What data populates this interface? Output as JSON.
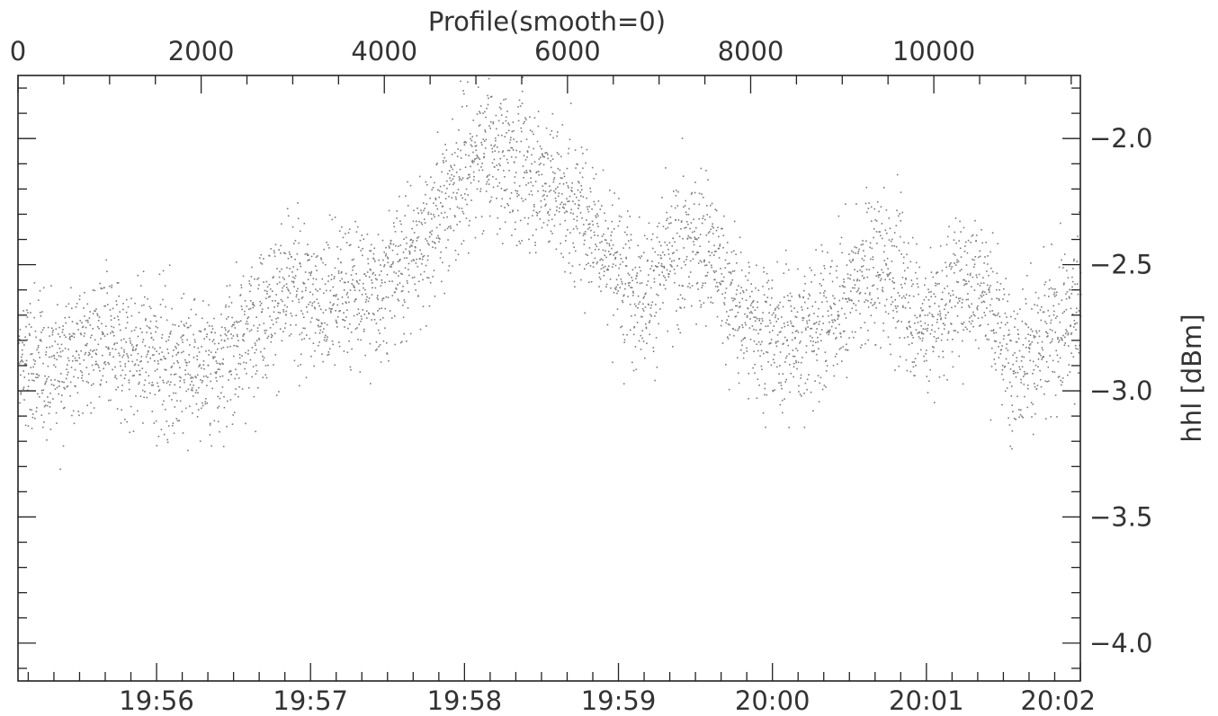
{
  "chart_data": {
    "type": "scatter",
    "title": "Profile(smooth=0)",
    "ylabel": "hhl [dBm]",
    "x_top": {
      "label": "Profile(smooth=0)",
      "range": [
        0,
        11600
      ],
      "major_ticks": [
        0,
        2000,
        4000,
        6000,
        8000,
        10000
      ],
      "tick_labels": [
        "0",
        "2000",
        "4000",
        "6000",
        "8000",
        "10000"
      ],
      "minor_step": 500
    },
    "x_bottom": {
      "range_time": [
        "19:55:06",
        "20:02:00"
      ],
      "major_ticks": [
        "19:56",
        "19:57",
        "19:58",
        "19:59",
        "20:00",
        "20:01",
        "20:02"
      ],
      "tick_labels": [
        "19:56",
        "19:57",
        "19:58",
        "19:59",
        "20:00",
        "20:01",
        "20:02"
      ],
      "minor_step_seconds": 10
    },
    "y": {
      "range": [
        -4.15,
        -1.75
      ],
      "major_ticks": [
        -2.0,
        -2.5,
        -3.0,
        -3.5,
        -4.0
      ],
      "tick_labels": [
        "−2.0",
        "−2.5",
        "−3.0",
        "−3.5",
        "−4.0"
      ],
      "minor_step": 0.1
    },
    "series": [
      {
        "x": [
          0,
          300,
          600,
          900,
          1200,
          1500,
          1800,
          2100,
          2400,
          2700,
          3000,
          3300,
          3600,
          3900,
          4200,
          4500,
          4800,
          5100,
          5400,
          5700,
          6000,
          6300,
          6600,
          6900,
          7200,
          7500,
          7800,
          8100,
          8400,
          8700,
          9000,
          9300,
          9600,
          9900,
          10200,
          10500,
          10800,
          11100,
          11400,
          11600
        ],
        "y": [
          -2.9,
          -2.9,
          -2.85,
          -2.8,
          -2.85,
          -2.85,
          -2.9,
          -2.9,
          -2.8,
          -2.65,
          -2.6,
          -2.65,
          -2.6,
          -2.6,
          -2.5,
          -2.35,
          -2.15,
          -2.05,
          -2.1,
          -2.15,
          -2.25,
          -2.35,
          -2.55,
          -2.6,
          -2.45,
          -2.4,
          -2.65,
          -2.75,
          -2.8,
          -2.75,
          -2.65,
          -2.5,
          -2.55,
          -2.75,
          -2.6,
          -2.55,
          -2.85,
          -2.85,
          -2.75,
          -2.65
        ]
      }
    ],
    "grid": false,
    "legend": "none"
  }
}
